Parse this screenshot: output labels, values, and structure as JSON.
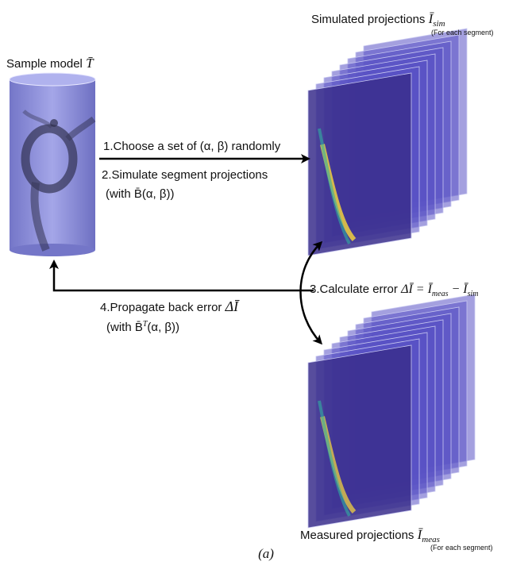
{
  "sample_model": {
    "label": "Sample model",
    "symbol": "T̄"
  },
  "simulated": {
    "label": "Simulated projections",
    "symbol": "Ī",
    "subscript": "sim",
    "note": "(For each segment)"
  },
  "measured": {
    "label": "Measured projections",
    "symbol": "Ī",
    "subscript": "meas",
    "note": "(For each segment)"
  },
  "steps": {
    "step1": "1.Choose a set of (α, β) randomly",
    "step2": "2.Simulate segment projections",
    "step2_sub": "(with B̄(α, β))",
    "step3_text": "3.Calculate error",
    "step3_eq": "ΔĪ = Ī",
    "step3_sub1": "meas",
    "step3_minus": " − Ī",
    "step3_sub2": "sim",
    "step4_text": "4.Propagate back error",
    "step4_sym": "ΔĪ",
    "step4_sub": "(with B̄",
    "step4_sup": "T",
    "step4_end": "(α, β))"
  },
  "caption": "(a)",
  "colors": {
    "arrow": "#000000",
    "model_fill": "#8a8cd8",
    "stack_plane": "#5a4fc0",
    "stack_front": "#3a2e8c",
    "hot": "#f5d040",
    "warm": "#30b0a0"
  }
}
